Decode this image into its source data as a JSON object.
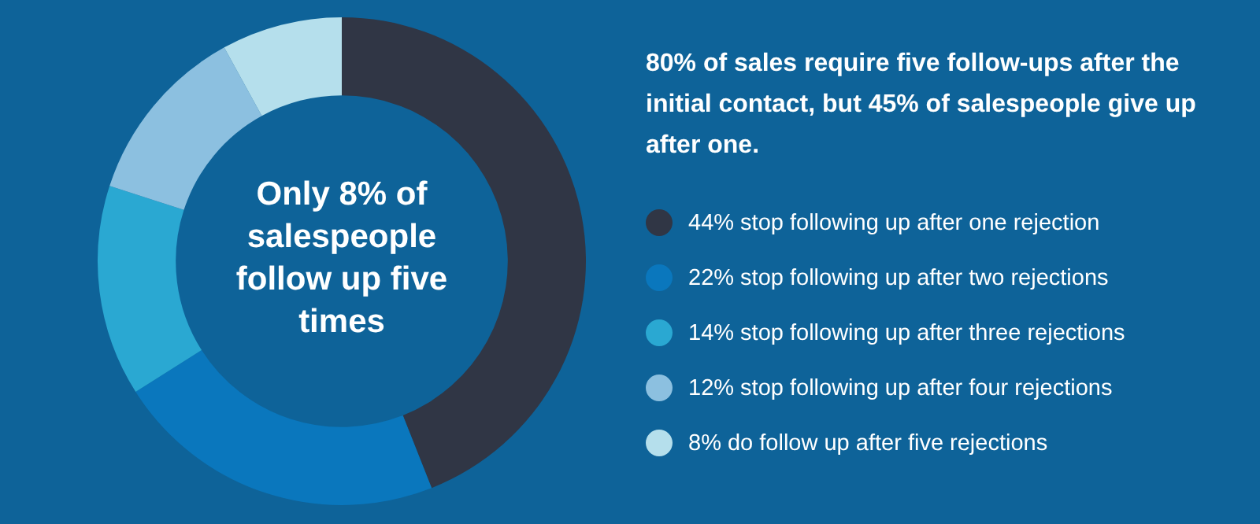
{
  "chart_data": {
    "type": "donut",
    "title": "80% of sales require five follow-ups after the initial contact, but 45% of salespeople give up after one.",
    "categories": [
      "44% stop following up after one rejection",
      "22% stop following up after two rejections",
      "14% stop following up after three rejections",
      "12% stop following up after four rejections",
      "8% do follow up after five rejections"
    ],
    "values": [
      44,
      22,
      14,
      12,
      8
    ],
    "colors": [
      "#303645",
      "#0a77bd",
      "#2aa8d2",
      "#8cc0e0",
      "#b5dfec"
    ],
    "annotations": [
      "Only 8% of salespeople follow up five times"
    ],
    "legend": "right"
  }
}
